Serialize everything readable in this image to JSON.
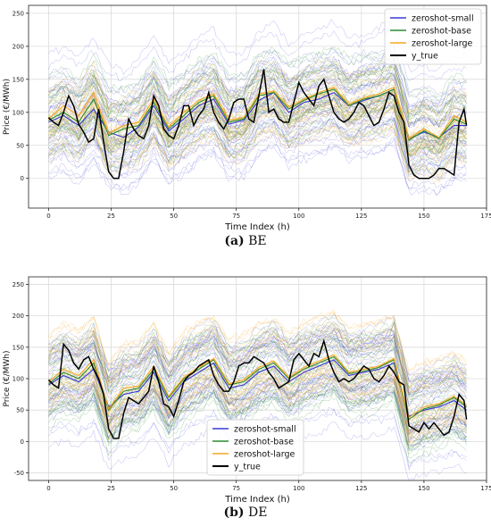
{
  "chart_data": [
    {
      "type": "line",
      "panel": "(a)",
      "region": "BE",
      "title": "",
      "xlabel": "Time Index (h)",
      "ylabel": "Price (€/MWh)",
      "xlim": [
        -8,
        175
      ],
      "ylim": [
        -45,
        262
      ],
      "xticks": [
        0,
        25,
        50,
        75,
        100,
        125,
        150,
        175
      ],
      "yticks": [
        0,
        50,
        100,
        150,
        200,
        250
      ],
      "grid": true,
      "legend_position": "top-right",
      "colors": {
        "zeroshot-small": "#3a3ad6",
        "zeroshot-base": "#2e8b2e",
        "zeroshot-large": "#f5a623",
        "y_true": "#000000"
      },
      "series": [
        {
          "name": "zeroshot-small",
          "x": [
            0,
            6,
            12,
            18,
            24,
            30,
            36,
            42,
            48,
            54,
            60,
            66,
            72,
            78,
            84,
            90,
            96,
            102,
            108,
            114,
            120,
            126,
            132,
            138,
            144,
            150,
            156,
            162,
            167
          ],
          "y": [
            85,
            95,
            80,
            105,
            70,
            62,
            78,
            110,
            72,
            90,
            110,
            120,
            82,
            88,
            118,
            130,
            100,
            115,
            120,
            130,
            110,
            118,
            125,
            135,
            60,
            70,
            62,
            80,
            80
          ]
        },
        {
          "name": "zeroshot-base",
          "x": [
            0,
            6,
            12,
            18,
            24,
            30,
            36,
            42,
            48,
            54,
            60,
            66,
            72,
            78,
            84,
            90,
            96,
            102,
            108,
            114,
            120,
            126,
            132,
            138,
            144,
            150,
            156,
            162,
            167
          ],
          "y": [
            88,
            100,
            85,
            120,
            65,
            75,
            80,
            115,
            75,
            95,
            115,
            125,
            85,
            90,
            125,
            130,
            105,
            118,
            128,
            135,
            110,
            120,
            125,
            135,
            58,
            72,
            60,
            90,
            82
          ]
        },
        {
          "name": "zeroshot-large",
          "x": [
            0,
            6,
            12,
            18,
            24,
            30,
            36,
            42,
            48,
            54,
            60,
            66,
            72,
            78,
            84,
            90,
            96,
            102,
            108,
            114,
            120,
            126,
            132,
            138,
            144,
            150,
            156,
            162,
            167
          ],
          "y": [
            90,
            110,
            95,
            130,
            68,
            80,
            85,
            120,
            78,
            100,
            118,
            128,
            88,
            92,
            128,
            132,
            108,
            120,
            130,
            138,
            112,
            122,
            128,
            138,
            60,
            75,
            62,
            95,
            85
          ]
        },
        {
          "name": "y_true",
          "x": [
            0,
            2,
            4,
            6,
            8,
            10,
            12,
            14,
            16,
            18,
            20,
            22,
            24,
            26,
            28,
            30,
            32,
            34,
            36,
            38,
            40,
            42,
            44,
            46,
            48,
            50,
            52,
            54,
            56,
            58,
            60,
            62,
            64,
            66,
            68,
            70,
            72,
            74,
            76,
            78,
            80,
            82,
            84,
            86,
            88,
            90,
            92,
            94,
            96,
            98,
            100,
            102,
            104,
            106,
            108,
            110,
            112,
            114,
            116,
            118,
            120,
            122,
            124,
            126,
            128,
            130,
            132,
            134,
            136,
            138,
            140,
            142,
            144,
            146,
            148,
            150,
            152,
            154,
            156,
            158,
            160,
            162,
            164,
            166,
            167
          ],
          "y": [
            92,
            85,
            80,
            100,
            125,
            110,
            82,
            70,
            55,
            60,
            105,
            55,
            10,
            0,
            0,
            40,
            90,
            75,
            65,
            60,
            80,
            125,
            110,
            75,
            65,
            60,
            80,
            110,
            110,
            80,
            95,
            105,
            130,
            100,
            85,
            75,
            90,
            115,
            120,
            120,
            90,
            85,
            125,
            165,
            100,
            105,
            90,
            85,
            85,
            115,
            145,
            130,
            120,
            110,
            140,
            150,
            125,
            100,
            90,
            85,
            90,
            100,
            115,
            110,
            95,
            80,
            85,
            105,
            130,
            125,
            100,
            85,
            20,
            5,
            0,
            0,
            0,
            5,
            15,
            15,
            10,
            5,
            85,
            105,
            80
          ]
        }
      ]
    },
    {
      "type": "line",
      "panel": "(b)",
      "region": "DE",
      "title": "",
      "xlabel": "Time Index (h)",
      "ylabel": "Price (€/MWh)",
      "xlim": [
        -8,
        175
      ],
      "ylim": [
        -62,
        262
      ],
      "xticks": [
        0,
        25,
        50,
        75,
        100,
        125,
        150,
        175
      ],
      "yticks": [
        -50,
        0,
        50,
        100,
        150,
        200,
        250
      ],
      "grid": true,
      "legend_position": "bottom-left",
      "colors": {
        "zeroshot-small": "#3a3ad6",
        "zeroshot-base": "#2e8b2e",
        "zeroshot-large": "#f5a623",
        "y_true": "#000000"
      },
      "series": [
        {
          "name": "zeroshot-small",
          "x": [
            0,
            6,
            12,
            18,
            24,
            30,
            36,
            42,
            48,
            54,
            60,
            66,
            72,
            78,
            84,
            90,
            96,
            102,
            108,
            114,
            120,
            126,
            132,
            138,
            144,
            150,
            156,
            162,
            167
          ],
          "y": [
            90,
            105,
            95,
            115,
            55,
            75,
            80,
            110,
            65,
            95,
            110,
            125,
            85,
            90,
            110,
            120,
            95,
            110,
            120,
            130,
            105,
            110,
            115,
            125,
            40,
            50,
            55,
            65,
            50
          ]
        },
        {
          "name": "zeroshot-base",
          "x": [
            0,
            6,
            12,
            18,
            24,
            30,
            36,
            42,
            48,
            54,
            60,
            66,
            72,
            78,
            84,
            90,
            96,
            102,
            108,
            114,
            120,
            126,
            132,
            138,
            144,
            150,
            156,
            162,
            167
          ],
          "y": [
            92,
            110,
            100,
            125,
            50,
            80,
            85,
            115,
            70,
            100,
            115,
            130,
            90,
            95,
            115,
            125,
            100,
            115,
            125,
            135,
            108,
            112,
            118,
            130,
            35,
            52,
            58,
            70,
            55
          ]
        },
        {
          "name": "zeroshot-large",
          "x": [
            0,
            6,
            12,
            18,
            24,
            30,
            36,
            42,
            48,
            54,
            60,
            66,
            72,
            78,
            84,
            90,
            96,
            102,
            108,
            114,
            120,
            126,
            132,
            138,
            144,
            150,
            156,
            162,
            167
          ],
          "y": [
            95,
            115,
            105,
            130,
            52,
            85,
            88,
            120,
            72,
            102,
            118,
            132,
            92,
            98,
            118,
            128,
            102,
            118,
            128,
            138,
            110,
            115,
            120,
            132,
            38,
            55,
            60,
            72,
            58
          ]
        },
        {
          "name": "y_true",
          "x": [
            0,
            2,
            4,
            6,
            8,
            10,
            12,
            14,
            16,
            18,
            20,
            22,
            24,
            26,
            28,
            30,
            32,
            34,
            36,
            38,
            40,
            42,
            44,
            46,
            48,
            50,
            52,
            54,
            56,
            58,
            60,
            62,
            64,
            66,
            68,
            70,
            72,
            74,
            76,
            78,
            80,
            82,
            84,
            86,
            88,
            90,
            92,
            94,
            96,
            98,
            100,
            102,
            104,
            106,
            108,
            110,
            112,
            114,
            116,
            118,
            120,
            122,
            124,
            126,
            128,
            130,
            132,
            134,
            136,
            138,
            140,
            142,
            144,
            146,
            148,
            150,
            152,
            154,
            156,
            158,
            160,
            162,
            164,
            166,
            167
          ],
          "y": [
            98,
            90,
            85,
            155,
            145,
            125,
            115,
            130,
            135,
            115,
            100,
            75,
            20,
            5,
            5,
            45,
            70,
            65,
            60,
            70,
            80,
            120,
            95,
            60,
            55,
            40,
            65,
            95,
            105,
            110,
            120,
            125,
            130,
            105,
            90,
            80,
            80,
            95,
            120,
            125,
            125,
            135,
            130,
            125,
            110,
            100,
            85,
            90,
            95,
            130,
            140,
            130,
            120,
            140,
            135,
            160,
            130,
            110,
            95,
            100,
            95,
            100,
            110,
            120,
            115,
            100,
            95,
            105,
            120,
            110,
            95,
            90,
            25,
            20,
            15,
            30,
            20,
            30,
            20,
            10,
            15,
            40,
            75,
            65,
            35
          ]
        }
      ]
    }
  ],
  "captions": [
    {
      "label": "(a)",
      "text": "BE"
    },
    {
      "label": "(b)",
      "text": "DE"
    }
  ]
}
